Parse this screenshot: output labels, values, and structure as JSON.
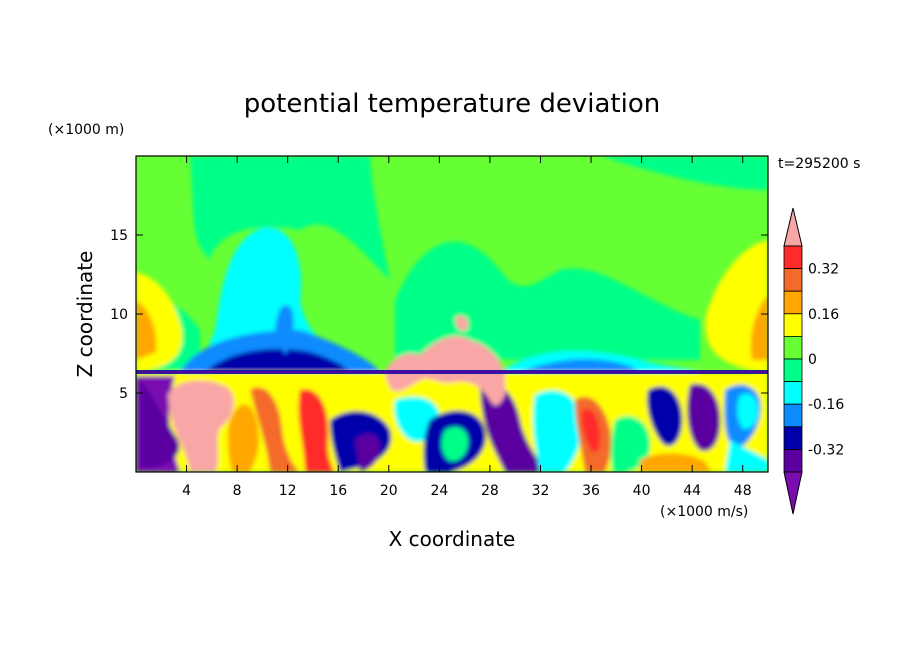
{
  "chart_data": {
    "type": "heatmap",
    "title": "potential temperature deviation",
    "xlabel": "X coordinate",
    "ylabel": "Z coordinate",
    "x_unit": "(×1000 m/s)",
    "y_unit": "(×1000 m)",
    "time_label": "t=295200 s",
    "xlim": [
      0,
      50
    ],
    "ylim": [
      0,
      20
    ],
    "x_ticks": [
      4,
      8,
      12,
      16,
      20,
      24,
      28,
      32,
      36,
      40,
      44,
      48
    ],
    "y_ticks": [
      5,
      10,
      15
    ],
    "colorbar": {
      "levels": [
        0.4,
        0.32,
        0.24,
        0.16,
        0.08,
        0,
        -0.08,
        -0.16,
        -0.24,
        -0.32,
        -0.4
      ],
      "colors": [
        "#f9a6a6",
        "#ff2a2a",
        "#f36a2a",
        "#ffa600",
        "#ffff00",
        "#66ff33",
        "#00ff88",
        "#00ffff",
        "#0d8bff",
        "#0000aa",
        "#5a00a0",
        "#7a0cb0"
      ],
      "tick_labels": [
        "0.32",
        "0.16",
        "0",
        "-0.16",
        "-0.32"
      ],
      "tick_values": [
        0.32,
        0.16,
        0,
        -0.16,
        -0.32
      ]
    }
  }
}
